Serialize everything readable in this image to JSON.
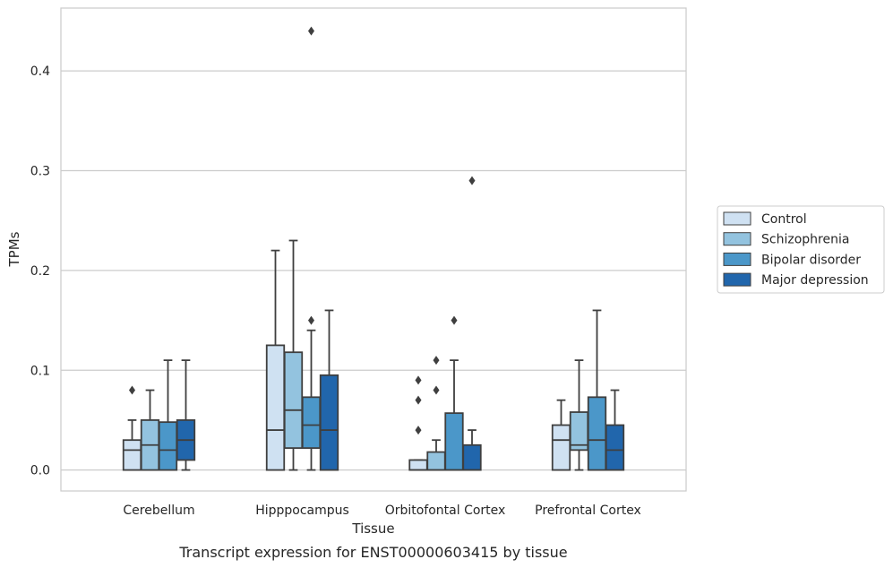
{
  "chart_data": {
    "type": "box",
    "xlabel": "Tissue",
    "ylabel": "TPMs",
    "caption": "Transcript expression for ENST00000603415 by tissue",
    "ylim": [
      -0.021,
      0.463
    ],
    "yticks": [
      "0.0",
      "0.1",
      "0.2",
      "0.3",
      "0.4"
    ],
    "ytick_values": [
      0.0,
      0.1,
      0.2,
      0.3,
      0.4
    ],
    "grid": "horizontal",
    "legend_position": "right",
    "categories": [
      "Cerebellum",
      "Hipppocampus",
      "Orbitofontal Cortex",
      "Prefrontal Cortex"
    ],
    "series": [
      {
        "name": "Control",
        "color": "#cfe1f2",
        "boxes": [
          {
            "whisker_low": 0.0,
            "q1": 0.0,
            "median": 0.02,
            "q3": 0.03,
            "whisker_high": 0.05,
            "outliers": [
              0.08
            ]
          },
          {
            "whisker_low": 0.0,
            "q1": 0.0,
            "median": 0.04,
            "q3": 0.125,
            "whisker_high": 0.22,
            "outliers": []
          },
          {
            "whisker_low": 0.0,
            "q1": 0.0,
            "median": 0.0,
            "q3": 0.01,
            "whisker_high": 0.01,
            "outliers": [
              0.04,
              0.07,
              0.09
            ]
          },
          {
            "whisker_low": 0.0,
            "q1": 0.0,
            "median": 0.03,
            "q3": 0.045,
            "whisker_high": 0.07,
            "outliers": []
          }
        ]
      },
      {
        "name": "Schizophrenia",
        "color": "#93c3df",
        "boxes": [
          {
            "whisker_low": 0.0,
            "q1": 0.0,
            "median": 0.025,
            "q3": 0.05,
            "whisker_high": 0.08,
            "outliers": []
          },
          {
            "whisker_low": 0.0,
            "q1": 0.022,
            "median": 0.06,
            "q3": 0.118,
            "whisker_high": 0.23,
            "outliers": []
          },
          {
            "whisker_low": 0.0,
            "q1": 0.0,
            "median": 0.0,
            "q3": 0.018,
            "whisker_high": 0.03,
            "outliers": [
              0.08,
              0.11
            ]
          },
          {
            "whisker_low": 0.0,
            "q1": 0.02,
            "median": 0.025,
            "q3": 0.058,
            "whisker_high": 0.11,
            "outliers": []
          }
        ]
      },
      {
        "name": "Bipolar disorder",
        "color": "#4b97c9",
        "boxes": [
          {
            "whisker_low": 0.0,
            "q1": 0.0,
            "median": 0.02,
            "q3": 0.048,
            "whisker_high": 0.11,
            "outliers": []
          },
          {
            "whisker_low": 0.0,
            "q1": 0.022,
            "median": 0.045,
            "q3": 0.073,
            "whisker_high": 0.14,
            "outliers": [
              0.15,
              0.44
            ]
          },
          {
            "whisker_low": 0.0,
            "q1": 0.0,
            "median": 0.0,
            "q3": 0.057,
            "whisker_high": 0.11,
            "outliers": [
              0.15
            ]
          },
          {
            "whisker_low": 0.0,
            "q1": 0.0,
            "median": 0.03,
            "q3": 0.073,
            "whisker_high": 0.16,
            "outliers": []
          }
        ]
      },
      {
        "name": "Major depression",
        "color": "#2166ac",
        "boxes": [
          {
            "whisker_low": 0.0,
            "q1": 0.01,
            "median": 0.03,
            "q3": 0.05,
            "whisker_high": 0.11,
            "outliers": []
          },
          {
            "whisker_low": 0.0,
            "q1": 0.0,
            "median": 0.04,
            "q3": 0.095,
            "whisker_high": 0.16,
            "outliers": []
          },
          {
            "whisker_low": 0.0,
            "q1": 0.0,
            "median": 0.0,
            "q3": 0.025,
            "whisker_high": 0.04,
            "outliers": [
              0.29
            ]
          },
          {
            "whisker_low": 0.0,
            "q1": 0.0,
            "median": 0.02,
            "q3": 0.045,
            "whisker_high": 0.08,
            "outliers": []
          }
        ]
      }
    ]
  }
}
